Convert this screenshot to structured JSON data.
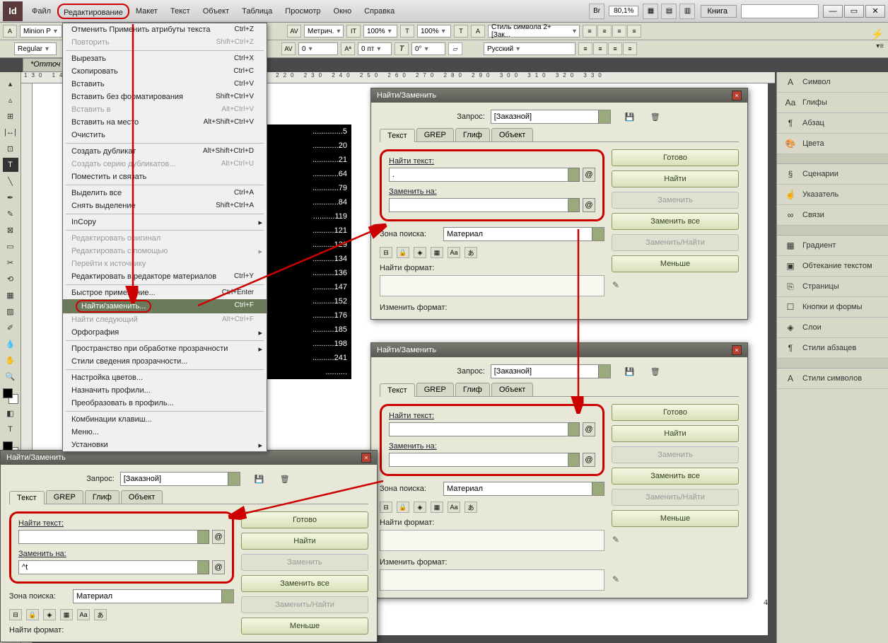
{
  "menubar": {
    "items": [
      "Файл",
      "Редактирование",
      "Макет",
      "Текст",
      "Объект",
      "Таблица",
      "Просмотр",
      "Окно",
      "Справка"
    ],
    "highlighted_index": 1,
    "zoom": "80,1%",
    "workspace": "Книга"
  },
  "control_bar": {
    "row1": {
      "font_family": "Minion P",
      "metrics": "Метрич.",
      "scale_h": "100%",
      "scale_v": "100%",
      "char_style": "Стиль символа 2+ [Зак...",
      "icon_a": "A"
    },
    "row2": {
      "font_style": "Regular",
      "tracking": "0",
      "baseline": "0 пт",
      "lang": "Русский"
    }
  },
  "doc_tab": "*Отточ",
  "ruler_text": "130 140 150 160 170 180 190 200 210 220 230 240 250 260 270 280 290 300 310 320 330",
  "dropdown": {
    "items": [
      {
        "label": "Отменить Применить атрибуты текста",
        "sc": "Ctrl+Z"
      },
      {
        "label": "Повторить",
        "sc": "Shift+Ctrl+Z",
        "disabled": true
      },
      {
        "sep": true
      },
      {
        "label": "Вырезать",
        "sc": "Ctrl+X"
      },
      {
        "label": "Скопировать",
        "sc": "Ctrl+C"
      },
      {
        "label": "Вставить",
        "sc": "Ctrl+V"
      },
      {
        "label": "Вставить без форматирования",
        "sc": "Shift+Ctrl+V"
      },
      {
        "label": "Вставить в",
        "sc": "Alt+Ctrl+V",
        "disabled": true
      },
      {
        "label": "Вставить на место",
        "sc": "Alt+Shift+Ctrl+V"
      },
      {
        "label": "Очистить",
        "sc": ""
      },
      {
        "sep": true
      },
      {
        "label": "Создать дубликат",
        "sc": "Alt+Shift+Ctrl+D"
      },
      {
        "label": "Создать серию дубликатов...",
        "sc": "Alt+Ctrl+U",
        "disabled": true
      },
      {
        "label": "Поместить и связать",
        "sc": ""
      },
      {
        "sep": true
      },
      {
        "label": "Выделить все",
        "sc": "Ctrl+A"
      },
      {
        "label": "Снять выделение",
        "sc": "Shift+Ctrl+A"
      },
      {
        "sep": true
      },
      {
        "label": "InCopy",
        "sc": "",
        "submenu": true
      },
      {
        "sep": true
      },
      {
        "label": "Редактировать оригинал",
        "sc": "",
        "disabled": true
      },
      {
        "label": "Редактировать с помощью",
        "sc": "",
        "submenu": true,
        "disabled": true
      },
      {
        "label": "Перейти к источнику",
        "sc": "",
        "disabled": true
      },
      {
        "label": "Редактировать в редакторе материалов",
        "sc": "Ctrl+Y"
      },
      {
        "sep": true
      },
      {
        "label": "Быстрое применение...",
        "sc": "Ctrl+Enter"
      },
      {
        "label": "Найти/заменить...",
        "sc": "Ctrl+F",
        "hover": true,
        "highlight": true
      },
      {
        "label": "Найти следующий",
        "sc": "Alt+Ctrl+F",
        "disabled": true
      },
      {
        "label": "Орфография",
        "sc": "",
        "submenu": true
      },
      {
        "sep": true
      },
      {
        "label": "Пространство при обработке прозрачности",
        "sc": "",
        "submenu": true
      },
      {
        "label": "Стили сведения прозрачности...",
        "sc": ""
      },
      {
        "sep": true
      },
      {
        "label": "Настройка цветов...",
        "sc": ""
      },
      {
        "label": "Назначить профили...",
        "sc": ""
      },
      {
        "label": "Преобразовать в профиль...",
        "sc": ""
      },
      {
        "sep": true
      },
      {
        "label": "Комбинации клавиш...",
        "sc": ""
      },
      {
        "label": "Меню...",
        "sc": ""
      },
      {
        "label": "Установки",
        "sc": "",
        "submenu": true
      }
    ]
  },
  "toc_lines": [
    "..............5",
    "............20",
    "............21",
    "............64",
    "............79",
    "............84",
    "..........119",
    "..........121",
    "..........129",
    "..........134",
    "..........136",
    "..........147",
    "..........152",
    "..........176",
    "..........185",
    "..........198",
    "..........241",
    ".........."
  ],
  "right_panels": [
    {
      "icon": "A",
      "label": "Символ"
    },
    {
      "icon": "Aa",
      "label": "Глифы"
    },
    {
      "icon": "¶",
      "label": "Абзац"
    },
    {
      "icon": "🎨",
      "label": "Цвета"
    },
    {
      "gap": true
    },
    {
      "icon": "§",
      "label": "Сценарии"
    },
    {
      "icon": "☝",
      "label": "Указатель"
    },
    {
      "icon": "∞",
      "label": "Связи"
    },
    {
      "gap": true
    },
    {
      "icon": "▦",
      "label": "Градиент"
    },
    {
      "icon": "▣",
      "label": "Обтекание текстом"
    },
    {
      "icon": "⎘",
      "label": "Страницы"
    },
    {
      "icon": "☐",
      "label": "Кнопки и формы"
    },
    {
      "icon": "◈",
      "label": "Слои"
    },
    {
      "icon": "¶",
      "label": "Стили абзацев"
    },
    {
      "gap": true
    },
    {
      "icon": "A",
      "label": "Стили символов"
    }
  ],
  "dlg": {
    "title": "Найти/Заменить",
    "query_label": "Запрос:",
    "query_value": "[Заказной]",
    "tabs": [
      "Текст",
      "GREP",
      "Глиф",
      "Объект"
    ],
    "find_label": "Найти текст:",
    "replace_label": "Заменить на:",
    "scope_label": "Зона поиска:",
    "scope_value": "Материал",
    "format_find_label": "Найти формат:",
    "format_repl_label": "Изменить формат:",
    "btn_done": "Готово",
    "btn_find": "Найти",
    "btn_replace": "Заменить",
    "btn_replace_all": "Заменить все",
    "btn_replace_find": "Заменить/Найти",
    "btn_less": "Меньше"
  },
  "d1": {
    "find_val": ".",
    "repl_val": ""
  },
  "d2": {
    "find_val": "",
    "repl_val": ""
  },
  "d3": {
    "find_val": "",
    "repl_val": "^t"
  },
  "page_number": "4"
}
